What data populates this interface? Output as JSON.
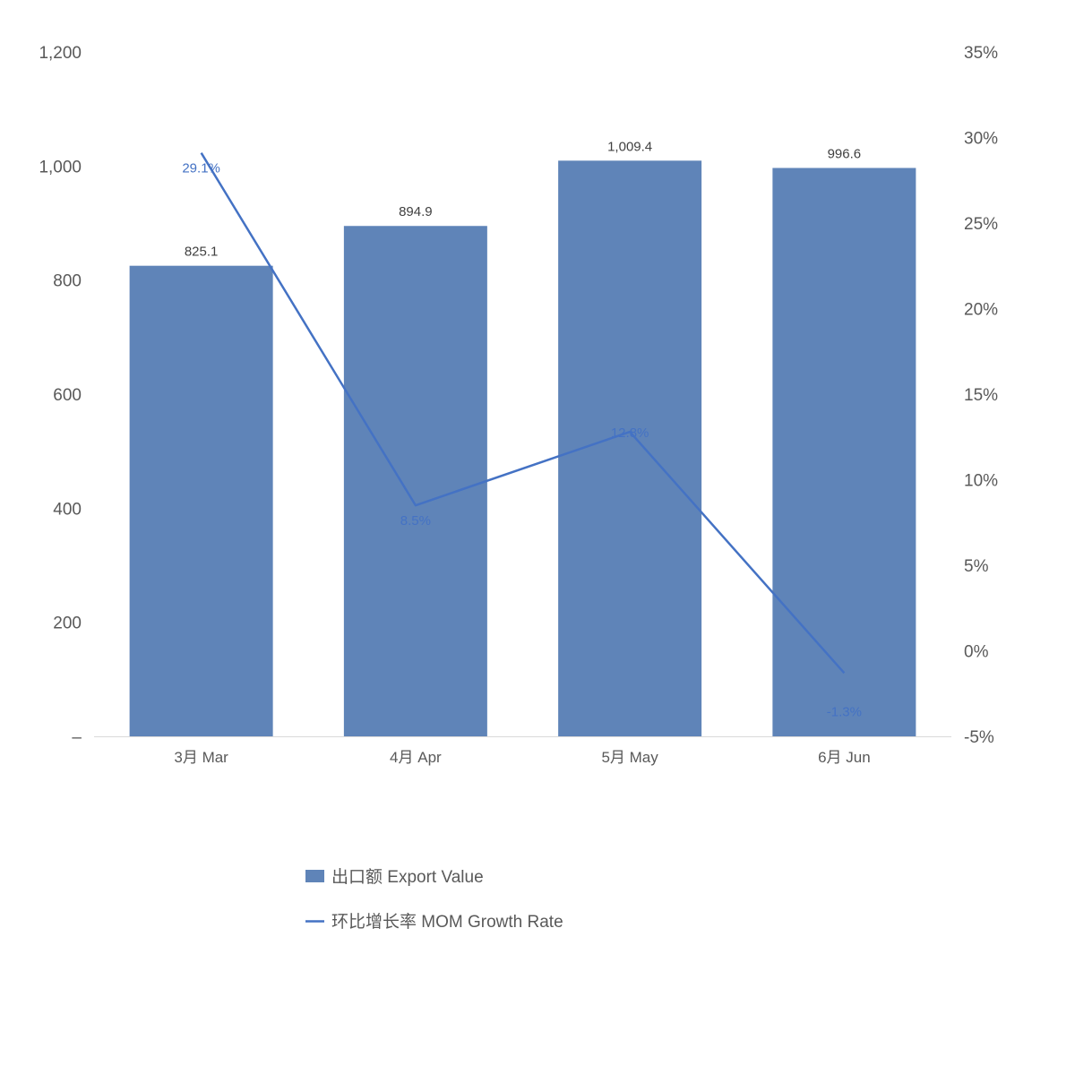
{
  "chart_data": {
    "type": "bar",
    "categories": [
      "3月 Mar",
      "4月 Apr",
      "5月 May",
      "6月 Jun"
    ],
    "series": [
      {
        "name": "出口额 Export Value",
        "type": "bar",
        "axis": "left",
        "values": [
          825.1,
          894.9,
          1009.4,
          996.6
        ],
        "data_labels": [
          "825.1",
          "894.9",
          "1,009.4",
          "996.6"
        ],
        "color": "#5F84B8"
      },
      {
        "name": "环比增长率 MOM Growth Rate",
        "type": "line",
        "axis": "right",
        "values": [
          29.1,
          8.5,
          12.8,
          -1.3
        ],
        "data_labels": [
          "29.1%",
          "8.5%",
          "12.8%",
          "-1.3%"
        ],
        "color": "#4472C4"
      }
    ],
    "y_left": {
      "ylim": [
        0,
        1200
      ],
      "ticks": [
        0,
        200,
        400,
        600,
        800,
        1000,
        1200
      ],
      "tick_labels": [
        "–",
        "200",
        "400",
        "600",
        "800",
        "1,000",
        "1,200"
      ]
    },
    "y_right": {
      "ylim": [
        -5,
        35
      ],
      "ticks": [
        -5,
        0,
        5,
        10,
        15,
        20,
        25,
        30,
        35
      ],
      "tick_labels": [
        "-5%",
        "0%",
        "5%",
        "10%",
        "15%",
        "20%",
        "25%",
        "30%",
        "35%"
      ]
    },
    "grid": false,
    "legend_position": "bottom"
  }
}
